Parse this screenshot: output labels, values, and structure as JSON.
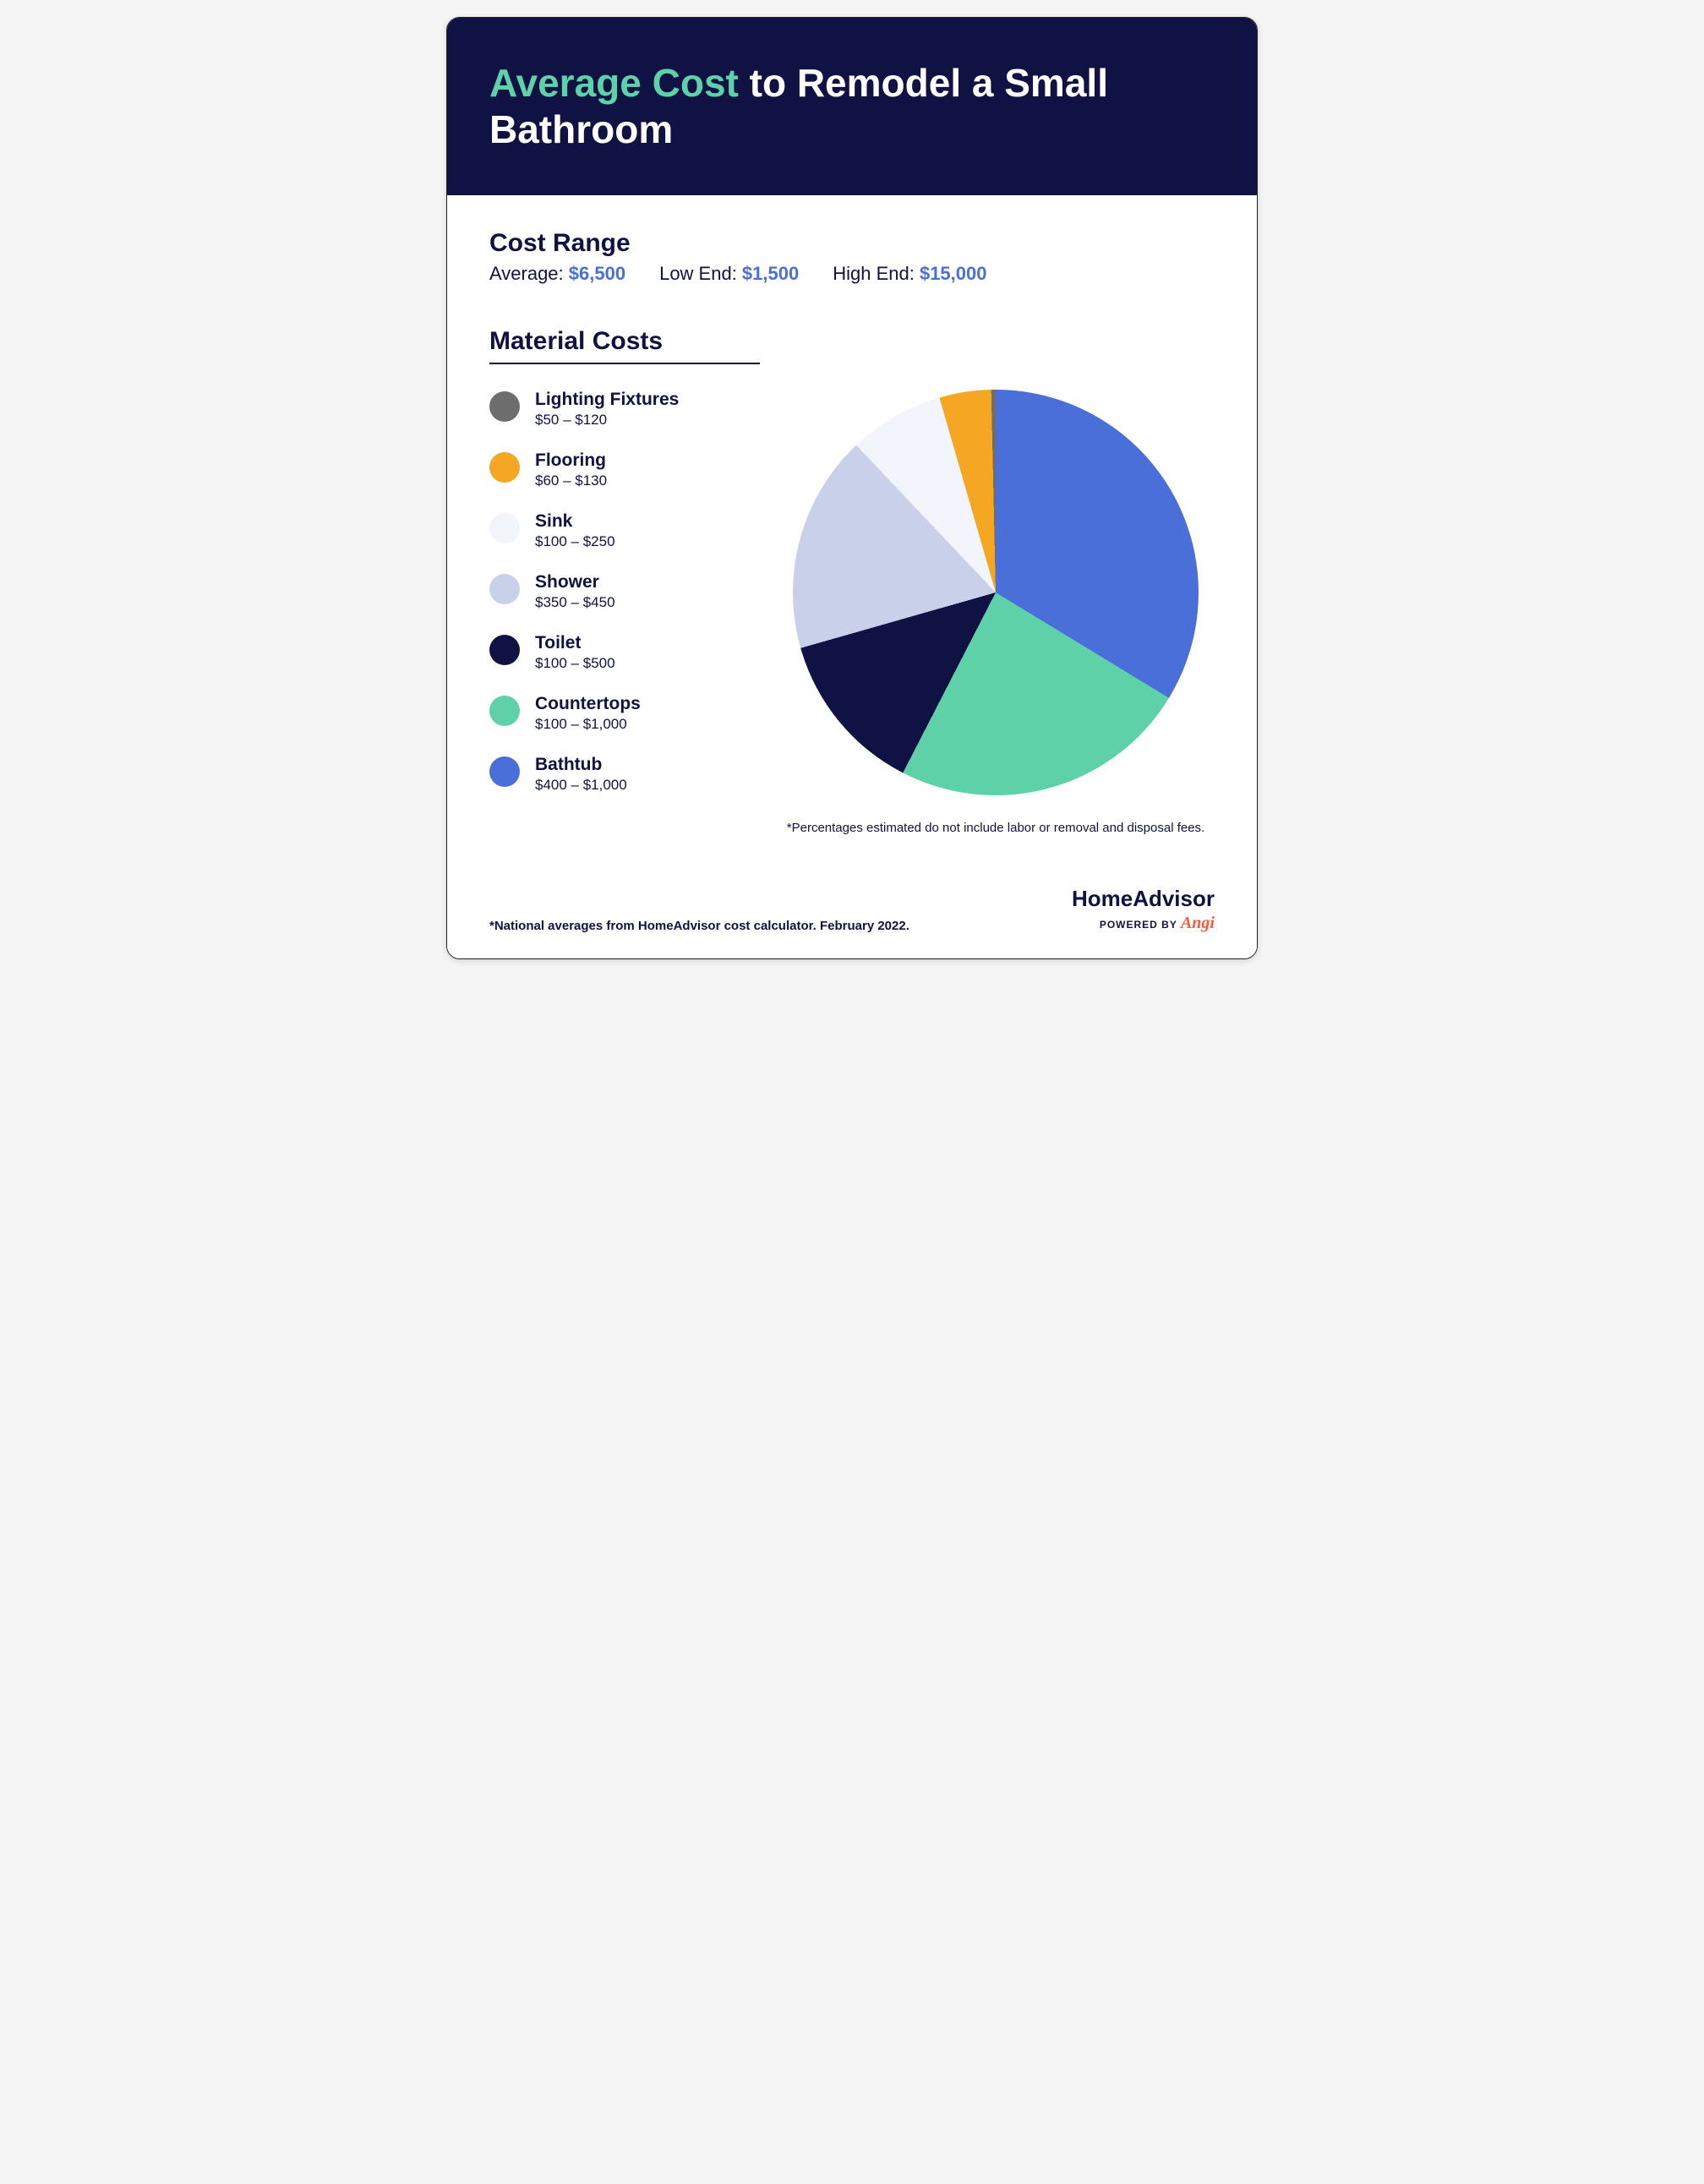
{
  "colors": {
    "header_bg": "#0f1243",
    "header_text": "#ffffff",
    "accent_teal": "#5ed1a8",
    "dark_navy": "#0f1243",
    "value_blue": "#4a6fd8",
    "body_text": "#0f1243",
    "angi_orange": "#ff5a3c"
  },
  "header": {
    "title_accent": "Average Cost",
    "title_rest": " to Remodel a Small Bathroom"
  },
  "cost_range": {
    "title": "Cost Range",
    "items": [
      {
        "label": "Average: ",
        "value": "$6,500"
      },
      {
        "label": "Low End: ",
        "value": "$1,500"
      },
      {
        "label": "High End: ",
        "value": "$15,000"
      }
    ]
  },
  "material": {
    "title": "Material Costs",
    "items": [
      {
        "name": "Lighting Fixtures",
        "range": "$50 – $120",
        "color": "#6d6d6d",
        "mid": 85
      },
      {
        "name": "Flooring",
        "range": "$60 – $130",
        "color": "#f5a623",
        "mid": 95
      },
      {
        "name": "Sink",
        "range": "$100 – $250",
        "color": "#f2f5fb",
        "mid": 175
      },
      {
        "name": "Shower",
        "range": "$350 – $450",
        "color": "#c9d0ea",
        "mid": 400
      },
      {
        "name": "Toilet",
        "range": "$100 – $500",
        "color": "#0f1243",
        "mid": 300
      },
      {
        "name": "Countertops",
        "range": "$100 – $1,000",
        "color": "#5ed1a8",
        "mid": 550
      },
      {
        "name": "Bathtub",
        "range": "$400 – $1,000",
        "color": "#4a6fd8",
        "mid": 700
      }
    ],
    "chart_note": "*Percentages estimated do not include labor or removal and disposal fees."
  },
  "pie": {
    "type": "pie",
    "start_angle_deg": 12,
    "background_color": "#ffffff"
  },
  "footer": {
    "note": "*National averages from HomeAdvisor cost calculator. February 2022.",
    "brand_main": "HomeAdvisor",
    "brand_sub_prefix": "POWERED BY ",
    "brand_sub_name": "Angi"
  }
}
